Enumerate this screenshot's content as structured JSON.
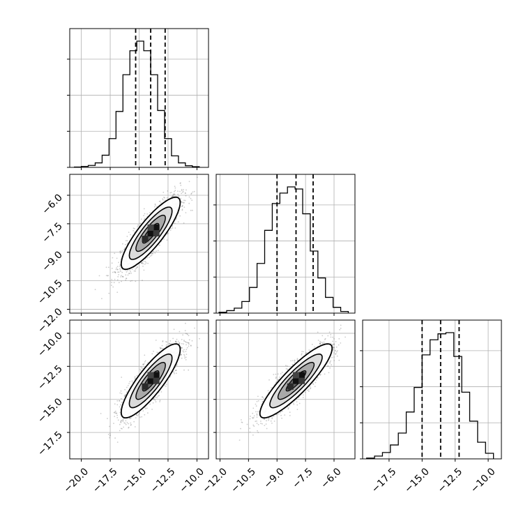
{
  "colors": {
    "axis": "#000000",
    "grid": "#b0b0b0",
    "hist": "#000000",
    "scatter": "#6e6e6e",
    "quantile": "#000000"
  },
  "chart_data": {
    "type": "corner",
    "title": "",
    "grid": true,
    "parameters": [
      {
        "key": "p1",
        "range": [
          -21.0,
          -9.0
        ],
        "ticks": [
          -20.0,
          -17.5,
          -15.0,
          -12.5,
          -10.0
        ],
        "tick_labels": [
          "−20.0",
          "−17.5",
          "−15.0",
          "−12.5",
          "−10.0"
        ],
        "quantiles": [
          -15.3,
          -14.0,
          -12.75
        ],
        "center": [
          -14.0
        ],
        "histogram": {
          "bin_edges": [
            -20.6,
            -20.0,
            -19.4,
            -18.8,
            -18.2,
            -17.6,
            -17.0,
            -16.4,
            -15.8,
            -15.2,
            -14.6,
            -14.0,
            -13.4,
            -12.8,
            -12.2,
            -11.6,
            -11.0,
            -10.4,
            -9.8
          ],
          "counts": [
            1,
            3,
            6,
            14,
            38,
            90,
            175,
            290,
            365,
            395,
            365,
            290,
            178,
            90,
            36,
            14,
            5,
            2
          ]
        }
      },
      {
        "key": "p2",
        "range": [
          -12.2,
          -4.9
        ],
        "ticks": [
          -12.0,
          -10.5,
          -9.0,
          -7.5,
          -6.0
        ],
        "tick_labels": [
          "−12.0",
          "−10.5",
          "−9.0",
          "−7.5",
          "−6.0"
        ],
        "quantiles": [
          -9.0,
          -8.0,
          -7.1
        ],
        "center": [
          -8.0
        ],
        "histogram": {
          "bin_edges": [
            -12.05,
            -11.65,
            -11.25,
            -10.85,
            -10.45,
            -10.05,
            -9.65,
            -9.25,
            -8.85,
            -8.45,
            -8.05,
            -7.65,
            -7.25,
            -6.85,
            -6.45,
            -6.05,
            -5.65,
            -5.25
          ],
          "counts": [
            2,
            6,
            12,
            28,
            62,
            120,
            200,
            265,
            290,
            305,
            300,
            240,
            150,
            85,
            38,
            14,
            4
          ]
        }
      },
      {
        "key": "p3",
        "range": [
          -19.5,
          -9.0
        ],
        "ticks": [
          -17.5,
          -15.0,
          -12.5,
          -10.0
        ],
        "tick_labels": [
          "−17.5",
          "−15.0",
          "−12.5",
          "−10.0"
        ],
        "quantiles": [
          -15.0,
          -13.6,
          -12.2
        ],
        "center": [
          -13.6
        ],
        "histogram": {
          "bin_edges": [
            -19.2,
            -18.6,
            -18.0,
            -17.4,
            -16.8,
            -16.2,
            -15.6,
            -15.0,
            -14.4,
            -13.8,
            -13.2,
            -12.6,
            -12.0,
            -11.4,
            -10.8,
            -10.2,
            -9.6
          ],
          "counts": [
            2,
            7,
            16,
            35,
            65,
            118,
            180,
            262,
            300,
            315,
            318,
            258,
            168,
            95,
            42,
            14
          ]
        }
      }
    ],
    "joint": [
      {
        "x": "p1",
        "y": "p2",
        "correlation": 0.85
      },
      {
        "x": "p1",
        "y": "p3",
        "correlation": 0.85
      },
      {
        "x": "p2",
        "y": "p3",
        "correlation": 0.88
      }
    ]
  }
}
